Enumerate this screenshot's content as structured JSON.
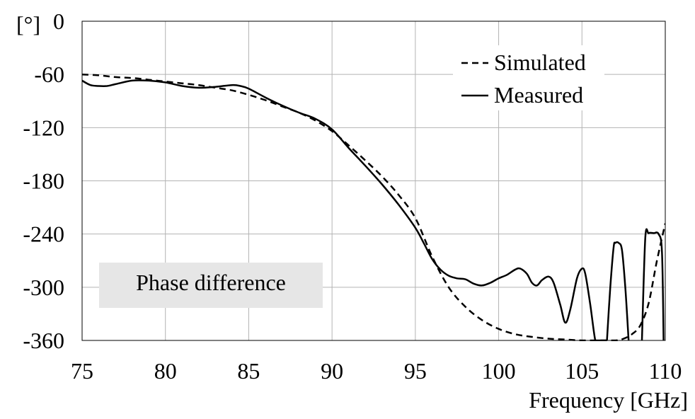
{
  "chart_data": {
    "type": "line",
    "title": "",
    "annotation": "Phase difference",
    "xlabel": "Frequency  [GHz]",
    "ylabel": "[°]",
    "xlim": [
      75,
      110
    ],
    "ylim": [
      -360,
      0
    ],
    "xticks": [
      75,
      80,
      85,
      90,
      95,
      100,
      105,
      110
    ],
    "yticks": [
      0,
      -60,
      -120,
      -180,
      -240,
      -300,
      -360
    ],
    "xtick_labels": [
      "75",
      "80",
      "85",
      "90",
      "95",
      "100",
      "105",
      "110"
    ],
    "ytick_labels": [
      "0",
      "-60",
      "-120",
      "-180",
      "-240",
      "-300",
      "-360"
    ],
    "grid": true,
    "legend_position": "top-right",
    "series": [
      {
        "name": "Simulated",
        "style": "dashed",
        "color": "#000000",
        "x": [
          75,
          76,
          77,
          78,
          79,
          80,
          81,
          82,
          83,
          84,
          85,
          86,
          87,
          88,
          89,
          90,
          91,
          92,
          93,
          94,
          95,
          96,
          97,
          98,
          99,
          100,
          101,
          102,
          103,
          104,
          105,
          106,
          107,
          107.5,
          108,
          108.5,
          109,
          109.5,
          110
        ],
        "y": [
          -60,
          -61,
          -63,
          -64,
          -66,
          -68,
          -70,
          -72,
          -75,
          -78,
          -83,
          -89,
          -96,
          -103,
          -112,
          -124,
          -140,
          -157,
          -175,
          -196,
          -222,
          -265,
          -300,
          -322,
          -337,
          -347,
          -353,
          -356,
          -358,
          -359,
          -360,
          -360,
          -360,
          -358,
          -353,
          -343,
          -318,
          -270,
          -228
        ]
      },
      {
        "name": "Measured",
        "style": "solid",
        "color": "#000000",
        "segments": [
          {
            "x": [
              75,
              75.5,
              76,
              76.5,
              77,
              78,
              79,
              80,
              81,
              82,
              83,
              84,
              84.5,
              85,
              86,
              87,
              88,
              89,
              90,
              91,
              92,
              93,
              94,
              95,
              95.5,
              96,
              96.5,
              97,
              97.5,
              98,
              98.5,
              99,
              99.5,
              100,
              100.5,
              101,
              101.3,
              101.7,
              102,
              102.3,
              102.6,
              103,
              103.3,
              103.7,
              104,
              104.3,
              104.7,
              105,
              105.2,
              105.5,
              105.8,
              106,
              106.5
            ],
            "y": [
              -67,
              -72,
              -73,
              -73,
              -71,
              -67,
              -67,
              -69,
              -73,
              -75,
              -74,
              -72,
              -73,
              -76,
              -86,
              -95,
              -103,
              -110,
              -122,
              -143,
              -163,
              -184,
              -207,
              -233,
              -250,
              -268,
              -280,
              -287,
              -290,
              -291,
              -296,
              -298,
              -295,
              -290,
              -286,
              -280,
              -279,
              -285,
              -295,
              -298,
              -292,
              -288,
              -295,
              -320,
              -340,
              -325,
              -290,
              -279,
              -285,
              -320,
              -360,
              -360,
              -360
            ]
          },
          {
            "x": [
              106.5,
              106.7,
              106.9,
              107,
              107.2,
              107.4,
              107.6,
              107.8
            ],
            "y": [
              -360,
              -300,
              -255,
              -250,
              -250,
              -258,
              -300,
              -360
            ]
          },
          {
            "x": [
              108.6,
              108.8,
              109,
              109.3,
              109.6,
              109.8,
              109.9
            ],
            "y": [
              -360,
              -245,
              -239,
              -239,
              -240,
              -260,
              -360
            ]
          }
        ]
      }
    ]
  }
}
